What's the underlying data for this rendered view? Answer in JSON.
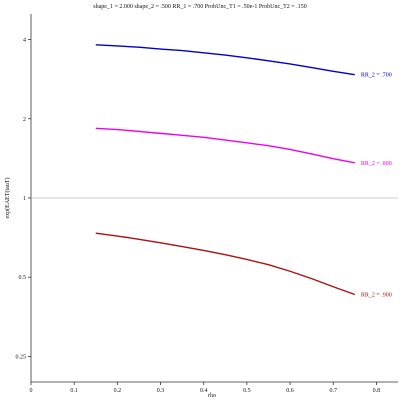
{
  "chart_data": {
    "type": "line",
    "title": "shape_1 = 2.000  shape_2 = .500  RR_1 = .700  ProbUnc_T1 = .50e-1  ProbUnc_T2 = .150",
    "xlabel": "rho",
    "ylabel": "exp(EAET(tauT)",
    "xlim": [
      0,
      0.85
    ],
    "ylim": [
      0.2,
      5.0
    ],
    "yscale": "log",
    "x_ticks": [
      0,
      0.1,
      0.2,
      0.3,
      0.4,
      0.5,
      0.6,
      0.7,
      0.8
    ],
    "x_tick_labels": [
      "0",
      "0.1",
      "0.2",
      "0.3",
      "0.4",
      "0.5",
      "0.6",
      "0.7",
      "0.8"
    ],
    "y_ticks": [
      0.25,
      0.5,
      1,
      2,
      4
    ],
    "y_tick_labels": [
      "0.25",
      "0.5",
      "1",
      "2",
      "4"
    ],
    "reference_line": {
      "y": 1,
      "color": "#999999"
    },
    "grid": false,
    "legend": "inline labels at right end of each line",
    "series": [
      {
        "name": "RR_2 = .700",
        "color": "#0000cc",
        "x": [
          0.15,
          0.2,
          0.25,
          0.3,
          0.35,
          0.4,
          0.45,
          0.5,
          0.55,
          0.6,
          0.65,
          0.7,
          0.75
        ],
        "y": [
          3.82,
          3.78,
          3.74,
          3.68,
          3.63,
          3.56,
          3.49,
          3.41,
          3.32,
          3.23,
          3.13,
          3.03,
          2.94
        ]
      },
      {
        "name": "RR_2 = .800",
        "color": "#ee00ee",
        "x": [
          0.15,
          0.2,
          0.25,
          0.3,
          0.35,
          0.4,
          0.45,
          0.5,
          0.55,
          0.6,
          0.65,
          0.7,
          0.75
        ],
        "y": [
          1.84,
          1.82,
          1.79,
          1.76,
          1.73,
          1.7,
          1.66,
          1.62,
          1.58,
          1.53,
          1.47,
          1.41,
          1.36
        ]
      },
      {
        "name": "RR_2 = .900",
        "color": "#aa1111",
        "x": [
          0.15,
          0.2,
          0.25,
          0.3,
          0.35,
          0.4,
          0.45,
          0.5,
          0.55,
          0.6,
          0.65,
          0.7,
          0.75
        ],
        "y": [
          0.735,
          0.717,
          0.697,
          0.676,
          0.654,
          0.632,
          0.609,
          0.584,
          0.558,
          0.527,
          0.494,
          0.46,
          0.43
        ]
      }
    ]
  }
}
